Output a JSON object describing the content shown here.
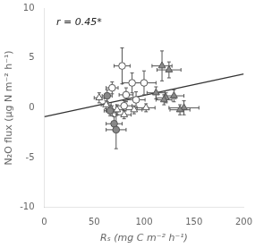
{
  "chart_data": {
    "type": "scatter",
    "annotation": "r = 0.45*",
    "xlabel": "Rₛ (mg C m⁻² h⁻¹)",
    "ylabel": "N₂O flux (μg N m⁻² h⁻¹)",
    "xlim": [
      0,
      200
    ],
    "ylim": [
      -10,
      10
    ],
    "xticks": [
      0,
      50,
      100,
      150,
      200
    ],
    "yticks": [
      -10,
      -5,
      0,
      5,
      10
    ],
    "grid": false,
    "series": [
      {
        "type": "line",
        "color": "#333333",
        "x": [
          0,
          200
        ],
        "values": [
          -0.9,
          3.4
        ]
      },
      {
        "marker": "circle",
        "color": "white",
        "x": [
          78,
          88,
          82,
          92,
          100,
          80,
          68
        ],
        "values": [
          4.2,
          2.5,
          1.3,
          0.8,
          2.5,
          0.2,
          2.0
        ],
        "xerr": [
          8,
          10,
          7,
          9,
          12,
          8,
          6
        ],
        "yerr": [
          1.8,
          1.0,
          0.7,
          0.8,
          1.2,
          0.5,
          0.6
        ]
      },
      {
        "marker": "circle",
        "color": "#888888",
        "x": [
          63,
          70,
          72,
          66
        ],
        "values": [
          1.2,
          -1.6,
          -2.2,
          -0.3
        ],
        "xerr": [
          5,
          8,
          10,
          6
        ],
        "yerr": [
          0.6,
          0.7,
          1.9,
          0.5
        ]
      },
      {
        "marker": "triangle",
        "color": "white",
        "x": [
          55,
          62,
          68,
          73,
          80,
          90,
          102
        ],
        "values": [
          1.0,
          0.3,
          -0.3,
          -0.2,
          -0.7,
          -0.2,
          0.0
        ],
        "xerr": [
          5,
          5,
          6,
          7,
          7,
          8,
          9
        ],
        "yerr": [
          0.5,
          0.4,
          0.5,
          0.5,
          0.4,
          0.4,
          0.4
        ]
      },
      {
        "marker": "triangle",
        "color": "#888888",
        "x": [
          118,
          125,
          130,
          140,
          122,
          120,
          136,
          112
        ],
        "values": [
          4.2,
          3.8,
          1.2,
          0.0,
          1.0,
          0.8,
          -0.2,
          1.5
        ],
        "xerr": [
          10,
          12,
          10,
          15,
          10,
          8,
          10,
          9
        ],
        "yerr": [
          1.5,
          0.8,
          0.6,
          0.7,
          0.5,
          0.5,
          0.5,
          0.6
        ]
      }
    ]
  }
}
